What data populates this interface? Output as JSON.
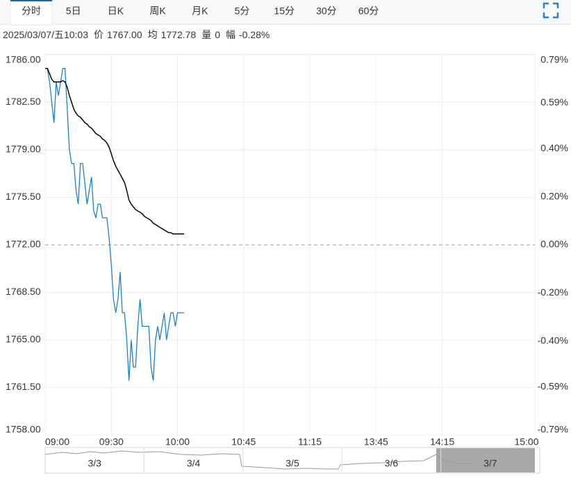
{
  "tabs": [
    "分时",
    "5日",
    "日K",
    "周K",
    "月K",
    "5分",
    "15分",
    "30分",
    "60分"
  ],
  "info": {
    "datetime": "2025/03/07/五10:03",
    "price_label": "价",
    "price": "1767.00",
    "avg_label": "均",
    "avg": "1772.78",
    "vol_label": "量",
    "vol": "0",
    "chg_label": "幅",
    "chg": "-0.28%"
  },
  "chart_data": {
    "type": "line",
    "x": [
      0,
      1,
      2,
      3,
      4,
      5,
      6,
      7,
      8,
      9,
      10,
      11,
      12,
      13,
      14,
      15,
      16,
      17,
      18,
      19,
      20,
      21,
      22,
      23,
      24,
      25,
      26,
      27,
      28,
      29,
      30,
      31,
      32,
      33,
      34,
      35,
      36,
      37,
      38,
      39,
      40,
      41,
      42,
      43,
      44,
      45,
      46,
      47,
      48,
      49,
      50,
      51,
      52,
      53,
      54,
      55,
      56,
      57,
      58,
      59,
      60,
      61,
      62,
      63
    ],
    "series": [
      {
        "color": "#1a82c4",
        "values": [
          1785.0,
          1785.0,
          1784.0,
          1782.5,
          1781.0,
          1784.0,
          1783.0,
          1784.0,
          1785.0,
          1785.0,
          1782.0,
          1779.0,
          1778.0,
          1778.0,
          1776.0,
          1775.0,
          1778.0,
          1778.0,
          1776.5,
          1775.0,
          1776.0,
          1777.0,
          1774.5,
          1774.0,
          1775.0,
          1775.0,
          1774.0,
          1774.0,
          1774.0,
          1772.5,
          1770.5,
          1768.0,
          1767.0,
          1768.0,
          1770.0,
          1767.0,
          1767.0,
          1765.0,
          1762.0,
          1765.0,
          1763.0,
          1763.0,
          1766.0,
          1768.0,
          1766.0,
          1766.0,
          1766.0,
          1766.0,
          1763.0,
          1762.0,
          1765.0,
          1766.0,
          1765.0,
          1766.0,
          1767.0,
          1765.0,
          1766.0,
          1767.0,
          1767.0,
          1766.0,
          1767.0,
          1767.0,
          1767.0,
          1767.0
        ]
      },
      {
        "color": "#000000",
        "values": [
          1785.0,
          1785.0,
          1784.6,
          1784.2,
          1784.0,
          1784.0,
          1784.0,
          1784.0,
          1784.1,
          1784.0,
          1783.6,
          1783.0,
          1782.5,
          1782.0,
          1781.7,
          1781.5,
          1781.4,
          1781.2,
          1781.0,
          1780.9,
          1780.7,
          1780.6,
          1780.4,
          1780.2,
          1780.1,
          1780.0,
          1779.8,
          1779.7,
          1779.5,
          1779.2,
          1778.7,
          1778.2,
          1777.8,
          1777.5,
          1777.2,
          1776.9,
          1776.6,
          1776.0,
          1775.3,
          1775.0,
          1774.8,
          1774.6,
          1774.5,
          1774.4,
          1774.3,
          1774.1,
          1774.0,
          1773.9,
          1773.8,
          1773.6,
          1773.5,
          1773.4,
          1773.3,
          1773.2,
          1773.1,
          1773.0,
          1772.9,
          1772.9,
          1772.8,
          1772.8,
          1772.8,
          1772.8,
          1772.8,
          1772.8
        ]
      }
    ],
    "xlim": [
      0,
      222
    ],
    "xticks": [
      {
        "value": 0,
        "label": "09:00"
      },
      {
        "value": 30,
        "label": "09:30"
      },
      {
        "value": 60,
        "label": "10:00"
      },
      {
        "value": 90,
        "label": "10:45"
      },
      {
        "value": 120,
        "label": "11:15"
      },
      {
        "value": 150,
        "label": "13:45"
      },
      {
        "value": 180,
        "label": "14:15"
      },
      {
        "value": 222,
        "label": "15:00"
      }
    ],
    "ylim": [
      1758,
      1786
    ],
    "yticks": [
      {
        "value": 1786,
        "label": "1786.00"
      },
      {
        "value": 1782.5,
        "label": "1782.50"
      },
      {
        "value": 1779,
        "label": "1779.00"
      },
      {
        "value": 1775.5,
        "label": "1775.50"
      },
      {
        "value": 1772,
        "label": "1772.00"
      },
      {
        "value": 1768.5,
        "label": "1768.50"
      },
      {
        "value": 1765,
        "label": "1765.00"
      },
      {
        "value": 1761.5,
        "label": "1761.50"
      },
      {
        "value": 1758,
        "label": "1758.00"
      }
    ],
    "y2lim": [
      -0.79,
      0.79
    ],
    "y2ticks": [
      {
        "value": 0.79,
        "label": "0.79%"
      },
      {
        "value": 0.59,
        "label": "0.59%"
      },
      {
        "value": 0.4,
        "label": "0.40%"
      },
      {
        "value": 0.2,
        "label": "0.20%"
      },
      {
        "value": 0,
        "label": "0.00%"
      },
      {
        "value": -0.2,
        "label": "-0.20%"
      },
      {
        "value": -0.4,
        "label": "-0.40%"
      },
      {
        "value": -0.59,
        "label": "-0.59%"
      },
      {
        "value": -0.79,
        "label": "-0.79%"
      }
    ],
    "reference_line": 1772,
    "up_color": "#e0201b",
    "down_color": "#1ea01e",
    "grid": true
  },
  "navigator": {
    "days": [
      "3/3",
      "3/4",
      "3/5",
      "3/6",
      "3/7"
    ],
    "selected": 4
  }
}
